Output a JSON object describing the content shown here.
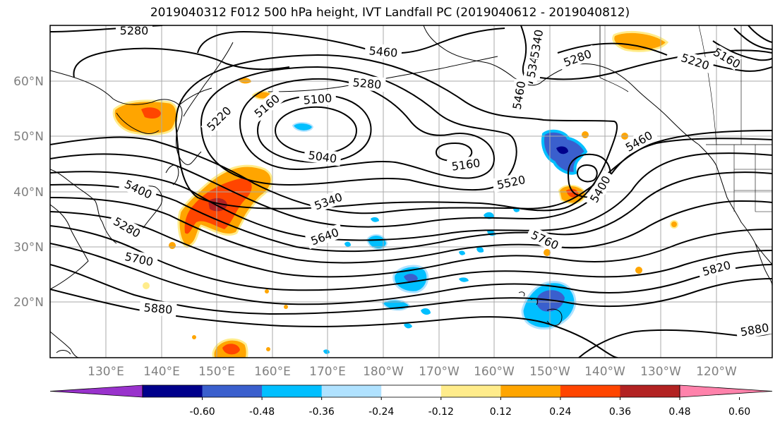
{
  "title": "2019040312 F012 500 hPa height, IVT Landfall PC (2019040612 - 2019040812)",
  "lat_labels": [
    "60°N",
    "50°N",
    "40°N",
    "30°N",
    "20°N"
  ],
  "lon_labels": [
    "130°E",
    "140°E",
    "150°E",
    "160°E",
    "170°E",
    "180°W",
    "170°W",
    "160°W",
    "150°W",
    "140°W",
    "130°W",
    "120°W"
  ],
  "contour_labels": [
    "5280",
    "5460",
    "5340",
    "5280",
    "5220",
    "5160",
    "5280",
    "5220",
    "5160",
    "5100",
    "5040",
    "5160",
    "5520",
    "5460",
    "5400",
    "5400",
    "5340",
    "5280",
    "5700",
    "5640",
    "5760",
    "5820",
    "5880",
    "5880",
    "5460",
    "5340"
  ],
  "colorbar": {
    "colors": [
      "#9932cc",
      "#00008b",
      "#3a5fcd",
      "#00bfff",
      "#b0e2ff",
      "#ffffff",
      "#ffec8b",
      "#ffa500",
      "#ff4500",
      "#b22222",
      "#ff82ab"
    ],
    "tick_labels": [
      "-0.60",
      "-0.48",
      "-0.36",
      "-0.24",
      "-0.12",
      "0.12",
      "0.24",
      "0.36",
      "0.48",
      "0.60"
    ]
  }
}
